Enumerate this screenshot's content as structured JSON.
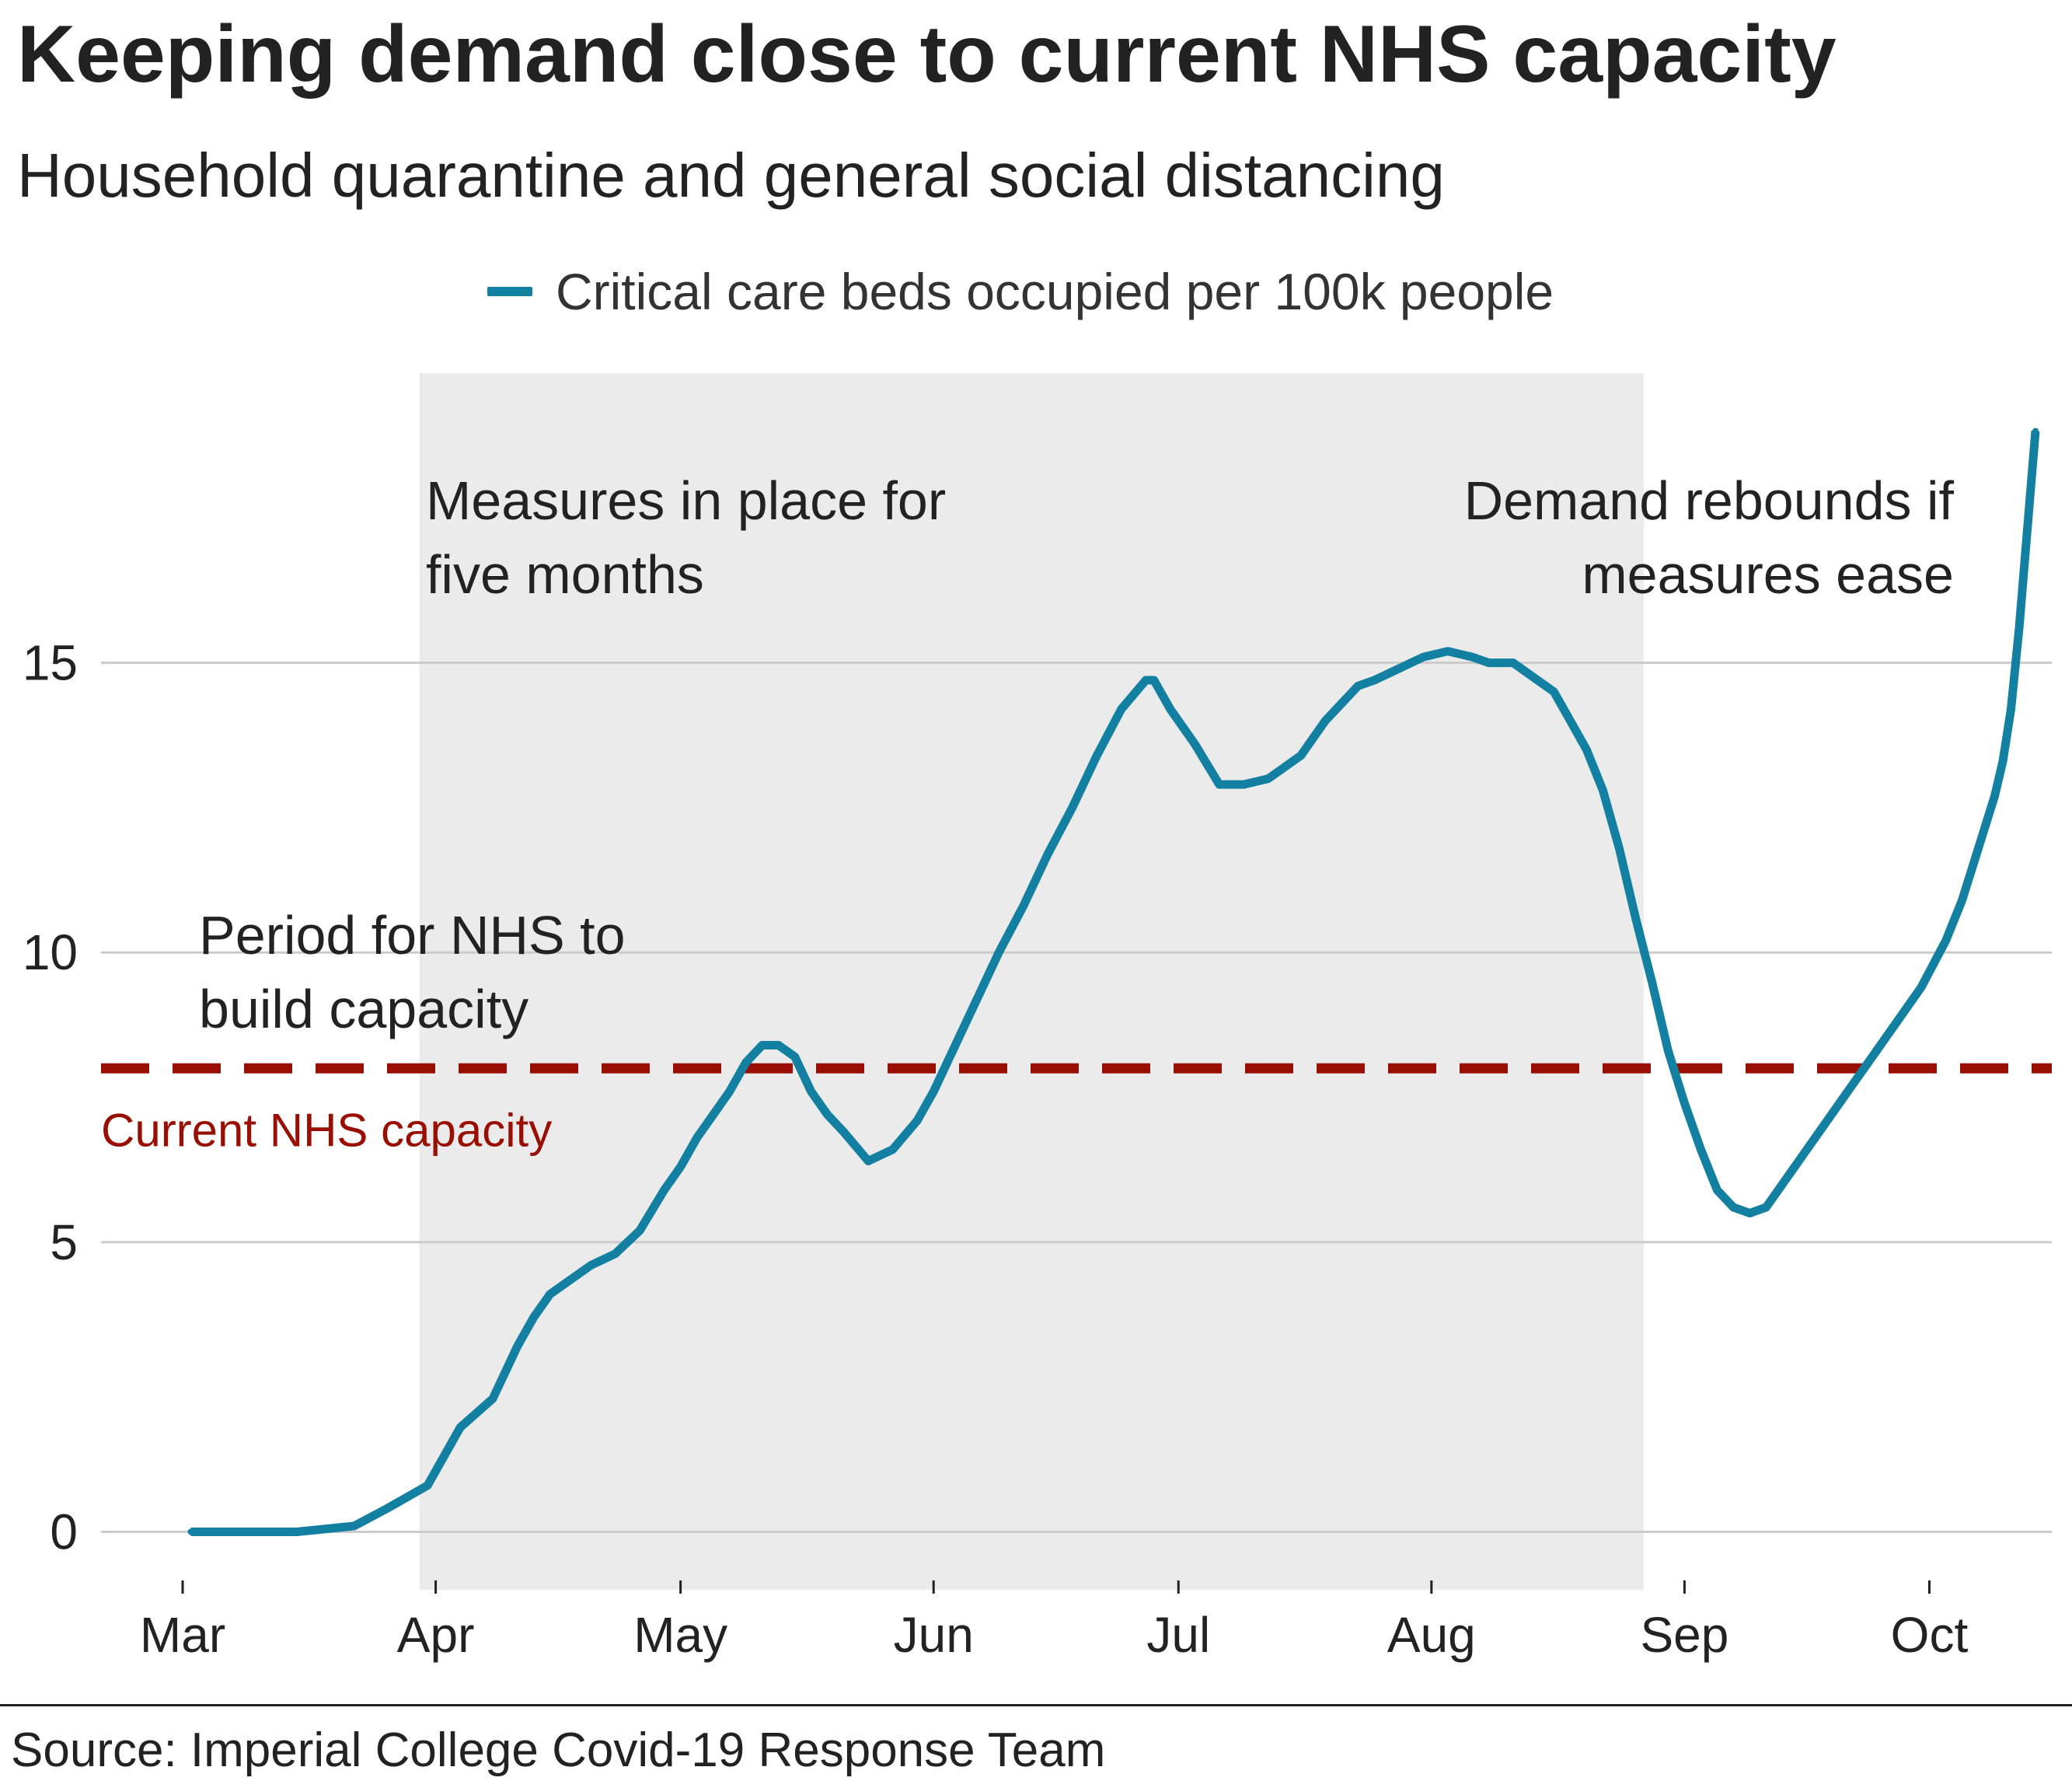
{
  "title": "Keeping demand close to current NHS capacity",
  "subtitle": "Household quarantine and general social distancing",
  "legend": {
    "label": "Critical care beds occupied per 100k people"
  },
  "source": "Source: Imperial College Covid-19 Response Team",
  "colors": {
    "line": "#1380A1",
    "capacity": "#990F03",
    "shade": "#EBEBEB",
    "grid": "#CBCBCB",
    "text": "#222222"
  },
  "chart_data": {
    "type": "line",
    "title": "Keeping demand close to current NHS capacity",
    "subtitle": "Household quarantine and general social distancing",
    "xlabel": "",
    "ylabel": "",
    "x_unit": "days since 1 Mar",
    "xlim": [
      -10,
      229
    ],
    "ylim": [
      -1,
      20
    ],
    "grid": true,
    "legend_position": "top-center",
    "x_ticks": [
      {
        "day": 0,
        "label": "Mar"
      },
      {
        "day": 31,
        "label": "Apr"
      },
      {
        "day": 61,
        "label": "May"
      },
      {
        "day": 92,
        "label": "Jun"
      },
      {
        "day": 122,
        "label": "Jul"
      },
      {
        "day": 153,
        "label": "Aug"
      },
      {
        "day": 184,
        "label": "Sep"
      },
      {
        "day": 214,
        "label": "Oct"
      }
    ],
    "y_ticks": [
      0,
      5,
      10,
      15
    ],
    "series": [
      {
        "name": "Critical care beds occupied per 100k people",
        "x": [
          1,
          7,
          14,
          21,
          25,
          30,
          34,
          38,
          41,
          43,
          45,
          47,
          50,
          53,
          56,
          59,
          61,
          63,
          65,
          67,
          69,
          71,
          73,
          75,
          77,
          79,
          81,
          84,
          87,
          90,
          92,
          94,
          96,
          98,
          100,
          103,
          106,
          109,
          112,
          115,
          118,
          119,
          121,
          124,
          127,
          130,
          133,
          135,
          137,
          140,
          142,
          144,
          146,
          149,
          152,
          155,
          158,
          160,
          163,
          166,
          168,
          170,
          172,
          174,
          176,
          178,
          180,
          182,
          184,
          186,
          188,
          190,
          192,
          194,
          196,
          198,
          201,
          204,
          207,
          210,
          213,
          216,
          218,
          220,
          222,
          223,
          224,
          225,
          227
        ],
        "values": [
          0,
          0,
          0,
          0.1,
          0.4,
          0.8,
          1.8,
          2.3,
          3.2,
          3.7,
          4.1,
          4.3,
          4.6,
          4.8,
          5.2,
          5.9,
          6.3,
          6.8,
          7.2,
          7.6,
          8.1,
          8.4,
          8.4,
          8.2,
          7.6,
          7.2,
          6.9,
          6.4,
          6.6,
          7.1,
          7.6,
          8.2,
          8.8,
          9.4,
          10.0,
          10.8,
          11.7,
          12.5,
          13.4,
          14.2,
          14.7,
          14.7,
          14.2,
          13.6,
          12.9,
          12.9,
          13.0,
          13.2,
          13.4,
          14.0,
          14.3,
          14.6,
          14.7,
          14.9,
          15.1,
          15.2,
          15.1,
          15.0,
          15.0,
          14.7,
          14.5,
          14.0,
          13.5,
          12.8,
          11.8,
          10.6,
          9.5,
          8.3,
          7.4,
          6.6,
          5.9,
          5.6,
          5.5,
          5.6,
          6.0,
          6.4,
          7.0,
          7.6,
          8.2,
          8.8,
          9.4,
          10.2,
          10.9,
          11.8,
          12.7,
          13.3,
          14.2,
          15.6,
          19.0
        ]
      }
    ],
    "reference_line": {
      "value": 8,
      "label": "Current NHS capacity"
    },
    "shaded_region": {
      "x_start": 29,
      "x_end": 179
    },
    "annotations": [
      {
        "text_lines": [
          "Measures in place for",
          "five months"
        ],
        "x": 29.8,
        "y": 17.8,
        "align": "start"
      },
      {
        "text_lines": [
          "Demand rebounds if",
          "measures ease"
        ],
        "x": 217,
        "y": 17.8,
        "align": "end"
      },
      {
        "text_lines": [
          "Period for NHS to",
          "build capacity"
        ],
        "x": 2,
        "y": 10.3,
        "align": "start"
      }
    ]
  }
}
